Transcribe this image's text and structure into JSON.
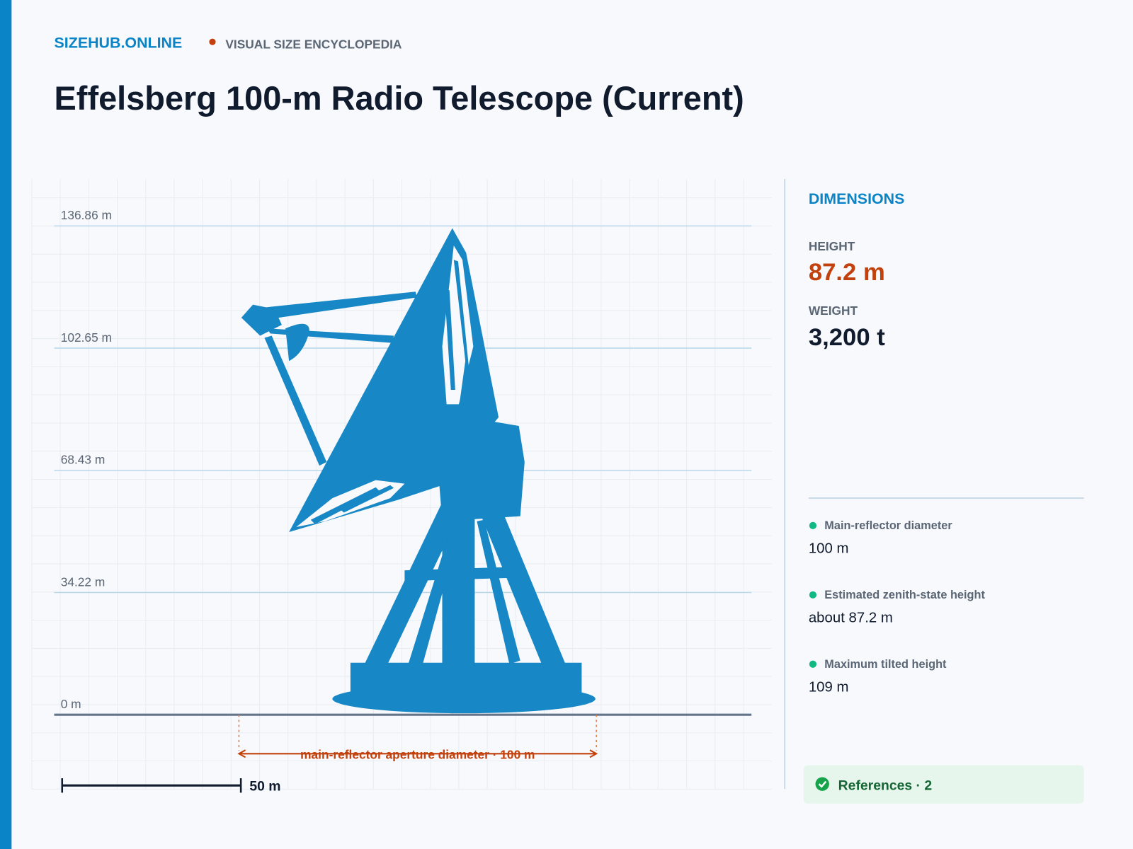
{
  "header": {
    "site": "SIZEHUB.ONLINE",
    "tagline": "VISUAL SIZE ENCYCLOPEDIA"
  },
  "title": "Effelsberg 100-m Radio Telescope (Current)",
  "scale": {
    "ticks": [
      {
        "value": 0,
        "label": "0 m"
      },
      {
        "value": 34.22,
        "label": "34.22 m"
      },
      {
        "value": 68.43,
        "label": "68.43 m"
      },
      {
        "value": 102.65,
        "label": "102.65 m"
      },
      {
        "value": 136.86,
        "label": "136.86 m"
      }
    ],
    "aperture": {
      "value": 100,
      "label": "main-reflector aperture diameter · 100 m"
    },
    "scale_bar": {
      "value": 50,
      "label": "50 m"
    }
  },
  "dimensions": {
    "heading": "DIMENSIONS",
    "height": {
      "label": "HEIGHT",
      "value": "87.2 m"
    },
    "weight": {
      "label": "WEIGHT",
      "value": "3,200 t"
    }
  },
  "facts": [
    {
      "label": "Main-reflector diameter",
      "value": "100 m"
    },
    {
      "label": "Estimated zenith-state height",
      "value": "about 87.2 m"
    },
    {
      "label": "Maximum tilted height",
      "value": "109 m"
    }
  ],
  "references": "References · 2"
}
